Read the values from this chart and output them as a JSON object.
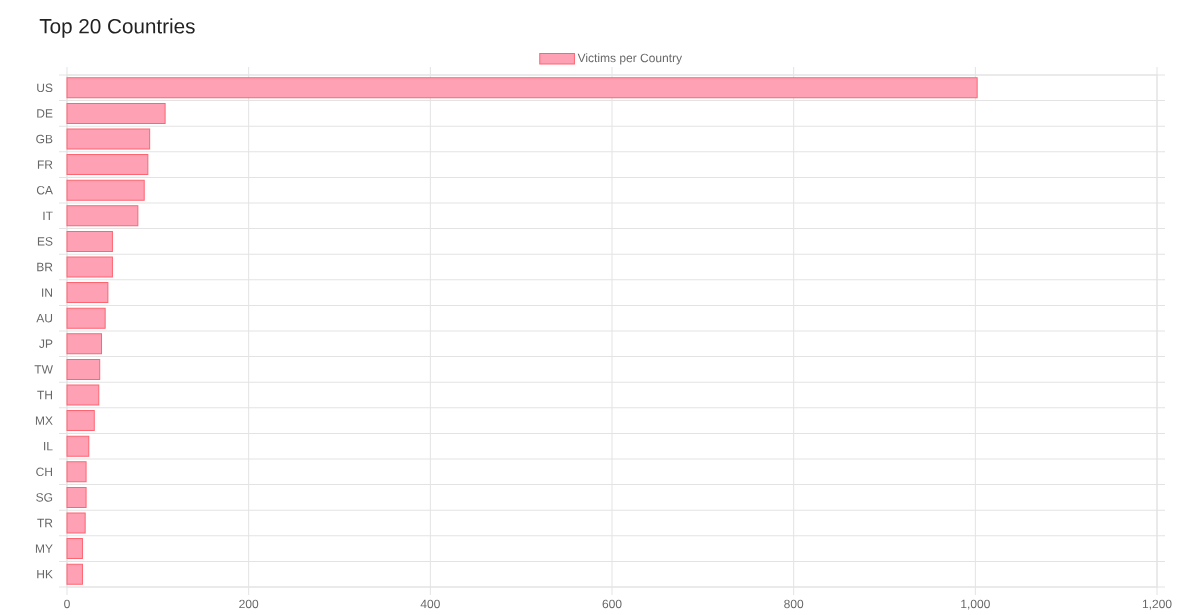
{
  "chart_data": {
    "type": "bar",
    "title": "Top 20 Countries",
    "orientation": "horizontal",
    "categories": [
      "US",
      "DE",
      "GB",
      "FR",
      "CA",
      "IT",
      "ES",
      "BR",
      "IN",
      "AU",
      "JP",
      "TW",
      "TH",
      "MX",
      "IL",
      "CH",
      "SG",
      "TR",
      "MY",
      "HK"
    ],
    "series": [
      {
        "name": "Victims per Country",
        "color": "#ffa1b5",
        "values": [
          1002,
          108,
          91,
          89,
          85,
          78,
          50,
          50,
          45,
          42,
          38,
          36,
          35,
          30,
          24,
          21,
          21,
          20,
          17,
          17
        ]
      }
    ],
    "xlim": [
      0,
      1200
    ],
    "xticks": [
      0,
      200,
      400,
      600,
      800,
      {
        "value": 1000,
        "label": "1,000"
      },
      {
        "value": 1200,
        "label": "1,200"
      }
    ],
    "grid": true,
    "legend": "top"
  }
}
